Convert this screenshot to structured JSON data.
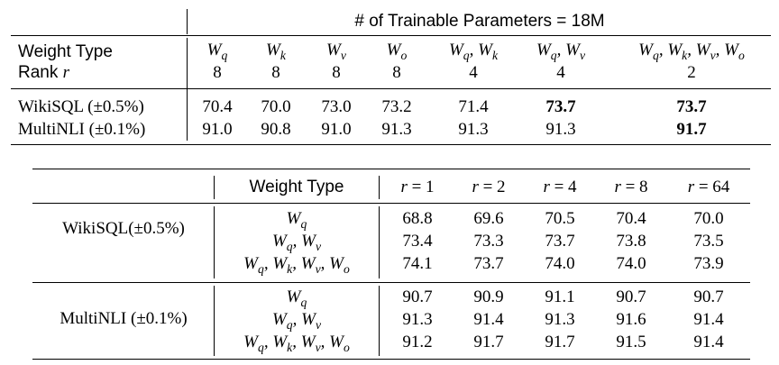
{
  "table1": {
    "header_group": "# of Trainable Parameters = 18M",
    "weight_type_label": "Weight Type",
    "rank_label": "Rank",
    "rank_symbol": "r",
    "columns": [
      {
        "weight": [
          "q"
        ],
        "rank": "8"
      },
      {
        "weight": [
          "k"
        ],
        "rank": "8"
      },
      {
        "weight": [
          "v"
        ],
        "rank": "8"
      },
      {
        "weight": [
          "o"
        ],
        "rank": "8"
      },
      {
        "weight": [
          "q",
          "k"
        ],
        "rank": "4"
      },
      {
        "weight": [
          "q",
          "v"
        ],
        "rank": "4"
      },
      {
        "weight": [
          "q",
          "k",
          "v",
          "o"
        ],
        "rank": "2"
      }
    ],
    "rows": [
      {
        "label": "WikiSQL (±0.5%)",
        "values": [
          "70.4",
          "70.0",
          "73.0",
          "73.2",
          "71.4",
          "73.7",
          "73.7"
        ],
        "bold": [
          false,
          false,
          false,
          false,
          false,
          true,
          true
        ]
      },
      {
        "label": "MultiNLI (±0.1%)",
        "values": [
          "91.0",
          "90.8",
          "91.0",
          "91.3",
          "91.3",
          "91.3",
          "91.7"
        ],
        "bold": [
          false,
          false,
          false,
          false,
          false,
          false,
          true
        ]
      }
    ]
  },
  "table2": {
    "weight_type_label": "Weight Type",
    "rank_columns": [
      "r = 1",
      "r = 2",
      "r = 4",
      "r = 8",
      "r = 64"
    ],
    "groups": [
      {
        "label": "WikiSQL(±0.5%)",
        "weights": [
          [
            "q"
          ],
          [
            "q",
            "v"
          ],
          [
            "q",
            "k",
            "v",
            "o"
          ]
        ],
        "values": [
          [
            "68.8",
            "69.6",
            "70.5",
            "70.4",
            "70.0"
          ],
          [
            "73.4",
            "73.3",
            "73.7",
            "73.8",
            "73.5"
          ],
          [
            "74.1",
            "73.7",
            "74.0",
            "74.0",
            "73.9"
          ]
        ]
      },
      {
        "label": "MultiNLI (±0.1%)",
        "weights": [
          [
            "q"
          ],
          [
            "q",
            "v"
          ],
          [
            "q",
            "k",
            "v",
            "o"
          ]
        ],
        "values": [
          [
            "90.7",
            "90.9",
            "91.1",
            "90.7",
            "90.7"
          ],
          [
            "91.3",
            "91.4",
            "91.3",
            "91.6",
            "91.4"
          ],
          [
            "91.2",
            "91.7",
            "91.7",
            "91.5",
            "91.4"
          ]
        ]
      }
    ]
  }
}
